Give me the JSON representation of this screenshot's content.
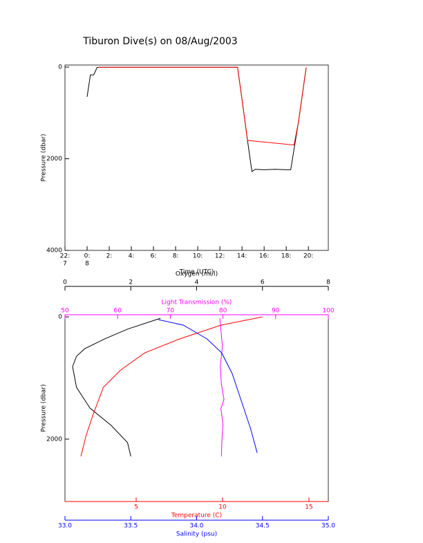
{
  "chart_data": [
    {
      "type": "line",
      "title": "Tiburon Dive(s) on 08/Aug/2003",
      "xlabel": "Time (UTC)",
      "ylabel": "Pressure (dbar)",
      "xlim": [
        0,
        23.8
      ],
      "xticks": [
        {
          "value": 0,
          "label": "22:"
        },
        {
          "value": 2,
          "label": "0:"
        },
        {
          "value": 4,
          "label": "2:"
        },
        {
          "value": 6,
          "label": "4:"
        },
        {
          "value": 8,
          "label": "6:"
        },
        {
          "value": 10,
          "label": "8:"
        },
        {
          "value": 12,
          "label": "10:"
        },
        {
          "value": 14,
          "label": "12:"
        },
        {
          "value": 16,
          "label": "14:"
        },
        {
          "value": 18,
          "label": "16:"
        },
        {
          "value": 20,
          "label": "18:"
        },
        {
          "value": 22,
          "label": "20:"
        }
      ],
      "xtick_sublabels": [
        {
          "value": 0,
          "label": "7"
        },
        {
          "value": 2,
          "label": "8"
        }
      ],
      "ylim": [
        -45,
        4000
      ],
      "yticks": [
        0,
        2000,
        4000
      ],
      "reversed": true,
      "series": [
        {
          "color": "#000000",
          "x": [
            2.0,
            2.3,
            2.6,
            2.9,
            3.0,
            15.6,
            16.0,
            16.5,
            16.9,
            17.2,
            18.0,
            19.0,
            20.0,
            20.4,
            21.1,
            21.8
          ],
          "y": [
            650,
            170,
            170,
            10,
            5,
            5,
            700,
            1600,
            2280,
            2230,
            2240,
            2230,
            2240,
            2240,
            1200,
            10
          ]
        },
        {
          "color": "#ff0000",
          "x": [
            3.0,
            15.6,
            16.0,
            16.5,
            20.7,
            21.1,
            21.8
          ],
          "y": [
            5,
            5,
            700,
            1600,
            1700,
            1200,
            10
          ]
        }
      ]
    },
    {
      "type": "line",
      "ylabel": "Pressure (dbar)",
      "ylim": [
        -35,
        3020
      ],
      "yticks": [
        0,
        2000
      ],
      "reversed": true,
      "axes": [
        {
          "label": "Oxygen (ml/l)",
          "color": "#000000",
          "position": "top",
          "lim": [
            0,
            8
          ],
          "ticks": [
            0,
            2,
            4,
            6,
            8
          ],
          "series": [
            {
              "color": "#000000",
              "x": [
                2.9,
                1.9,
                1.2,
                0.6,
                0.35,
                0.23,
                0.35,
                0.76,
                1.4,
                1.9,
                2.0
              ],
              "y": [
                23,
                200,
                362,
                520,
                644,
                814,
                1153,
                1492,
                1774,
                2056,
                2282
              ]
            }
          ]
        },
        {
          "label": "Light Transmission (%)",
          "color": "#ff00ff",
          "position": "top",
          "lim": [
            50,
            100
          ],
          "ticks": [
            50,
            60,
            70,
            80,
            90,
            100
          ],
          "series": [
            {
              "color": "#ff00ff",
              "x": [
                79.4,
                79.9,
                79.5,
                79.7,
                80.2,
                79.6,
                80.0,
                79.8,
                79.7
              ],
              "y": [
                20,
                480,
                800,
                1100,
                1350,
                1500,
                1750,
                2000,
                2282
              ]
            }
          ]
        },
        {
          "label": "Temperature (C)",
          "color": "#ff0000",
          "position": "bottom",
          "lim": [
            0.88,
            16.12
          ],
          "ticks": [
            5,
            10,
            15
          ],
          "series": [
            {
              "color": "#ff0000",
              "x": [
                12.3,
                9.9,
                7.5,
                5.5,
                4.1,
                3.1,
                2.5,
                2.1,
                1.8
              ],
              "y": [
                0,
                136,
                362,
                588,
                870,
                1153,
                1605,
                1944,
                2282
              ]
            }
          ]
        },
        {
          "label": "Salinity (psu)",
          "color": "#0000ff",
          "position": "bottom",
          "lim": [
            33.0,
            35.0
          ],
          "ticks": [
            {
              "value": 33.0,
              "label": "33.0"
            },
            {
              "value": 33.5,
              "label": "33.5"
            },
            {
              "value": 34.0,
              "label": "34.0"
            },
            {
              "value": 34.5,
              "label": "34.5"
            },
            {
              "value": 35.0,
              "label": "35.0"
            }
          ],
          "series": [
            {
              "color": "#0000ff",
              "x": [
                33.71,
                33.9,
                34.08,
                34.19,
                34.27,
                34.34,
                34.41,
                34.46
              ],
              "y": [
                45,
                136,
                362,
                588,
                927,
                1379,
                1831,
                2226
              ]
            }
          ]
        }
      ]
    }
  ]
}
